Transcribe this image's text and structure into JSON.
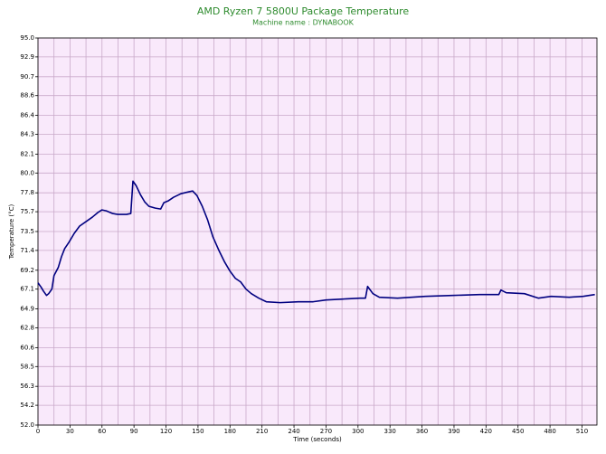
{
  "chart_data": {
    "type": "line",
    "title": "AMD Ryzen 7 5800U Package Temperature",
    "subtitle": "Machine name : DYNABOOK",
    "x_label": "Time (seconds)",
    "y_label": "Temperature (°C)",
    "x": [
      0,
      3,
      5,
      8,
      10,
      13,
      15,
      19,
      22,
      25,
      29,
      34,
      39,
      45,
      51,
      56,
      60,
      64,
      70,
      75,
      83,
      87,
      89,
      92,
      96,
      100,
      104,
      110,
      115,
      118,
      122,
      127,
      134,
      141,
      145,
      149,
      154,
      159,
      164,
      170,
      175,
      180,
      185,
      190,
      195,
      200,
      207,
      214,
      227,
      244,
      258,
      270,
      286,
      302,
      307,
      309,
      314,
      320,
      337,
      363,
      388,
      414,
      432,
      434,
      439,
      456,
      469,
      481,
      498,
      511,
      522
    ],
    "series": [
      {
        "name": "Package Temperature",
        "color": "#000080",
        "values": [
          67.8,
          67.3,
          66.9,
          66.4,
          66.6,
          67.1,
          68.6,
          69.5,
          70.7,
          71.6,
          72.3,
          73.3,
          74.1,
          74.6,
          75.1,
          75.6,
          75.9,
          75.8,
          75.5,
          75.4,
          75.4,
          75.5,
          79.1,
          78.6,
          77.6,
          76.8,
          76.3,
          76.1,
          76.0,
          76.7,
          76.9,
          77.3,
          77.7,
          77.9,
          78.0,
          77.5,
          76.3,
          74.8,
          72.9,
          71.3,
          70.1,
          69.1,
          68.3,
          67.9,
          67.1,
          66.6,
          66.1,
          65.7,
          65.6,
          65.7,
          65.7,
          65.9,
          66.0,
          66.1,
          66.1,
          67.4,
          66.6,
          66.2,
          66.1,
          66.3,
          66.4,
          66.5,
          66.5,
          67.0,
          66.7,
          66.6,
          66.1,
          66.3,
          66.2,
          66.3,
          66.5
        ]
      }
    ],
    "xlim": [
      0,
      524
    ],
    "xticks": [
      0,
      30,
      60,
      90,
      120,
      150,
      180,
      210,
      240,
      270,
      300,
      330,
      360,
      390,
      420,
      450,
      480,
      510
    ],
    "x_minor_ticks": [
      15,
      45,
      75,
      105,
      135,
      165,
      195,
      225,
      255,
      285,
      315,
      345,
      375,
      405,
      435,
      465,
      495
    ],
    "ylim": [
      52,
      95
    ],
    "yticks": [
      {
        "value": 52,
        "label": "52.0"
      },
      54.2,
      56.3,
      58.5,
      60.6,
      62.8,
      64.9,
      67.1,
      69.2,
      71.4,
      73.5,
      75.7,
      77.8,
      {
        "value": 80,
        "label": "80.0"
      },
      82.1,
      84.3,
      86.4,
      88.6,
      90.7,
      92.9,
      {
        "value": 95,
        "label": "95.0"
      }
    ],
    "grid": true,
    "background": "#f9e9fb",
    "grid_color": "#c9a9c9"
  }
}
